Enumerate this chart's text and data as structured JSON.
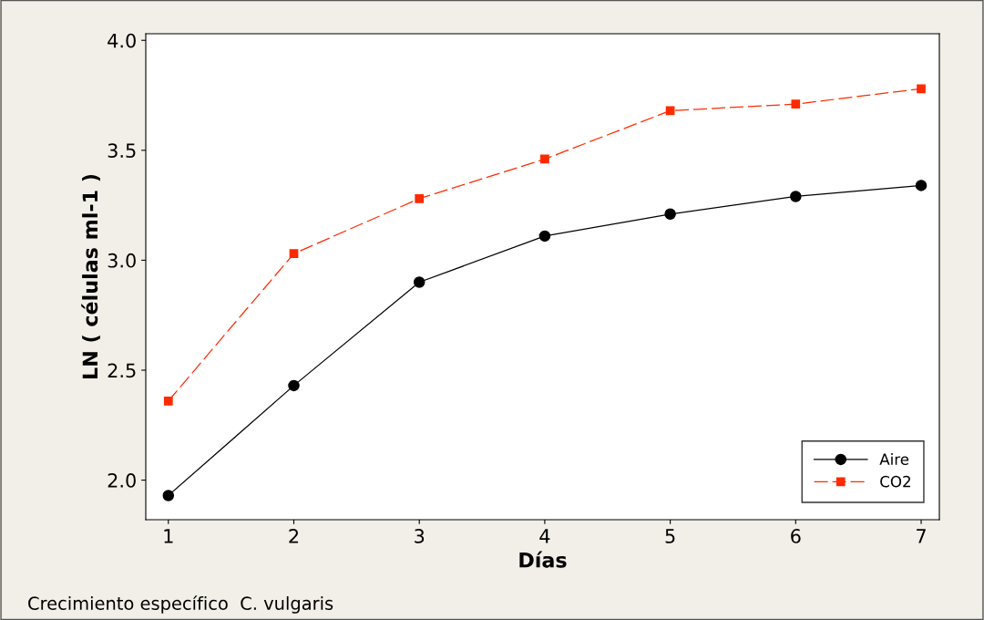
{
  "chart_data": {
    "type": "line",
    "xlabel": "Días",
    "ylabel": "LN ( células ml-1 )",
    "x": [
      1,
      2,
      3,
      4,
      5,
      6,
      7
    ],
    "series": [
      {
        "name": "Aire",
        "color": "#000000",
        "values": [
          1.93,
          2.43,
          2.9,
          3.11,
          3.21,
          3.29,
          3.34
        ],
        "marker": "circle",
        "line_style": "solid"
      },
      {
        "name": "CO2",
        "color": "#ff2a00",
        "values": [
          2.36,
          3.03,
          3.28,
          3.46,
          3.68,
          3.71,
          3.78
        ],
        "marker": "square",
        "line_style": "dashed"
      }
    ],
    "xlim": [
      0.82,
      7.145
    ],
    "xticks": [
      1,
      2,
      3,
      4,
      5,
      6,
      7
    ],
    "ylim": [
      1.82,
      4.03
    ],
    "yticks": [
      {
        "value": 2.0,
        "label": "2.0"
      },
      {
        "value": 2.5,
        "label": "2.5"
      },
      {
        "value": 3.0,
        "label": "3.0"
      },
      {
        "value": 3.5,
        "label": "3.5"
      },
      {
        "value": 4.0,
        "label": "4.0"
      }
    ],
    "grid": false,
    "legend": "bottom right",
    "annotations": [
      "Crecimiento específico  C. vulgaris"
    ]
  }
}
